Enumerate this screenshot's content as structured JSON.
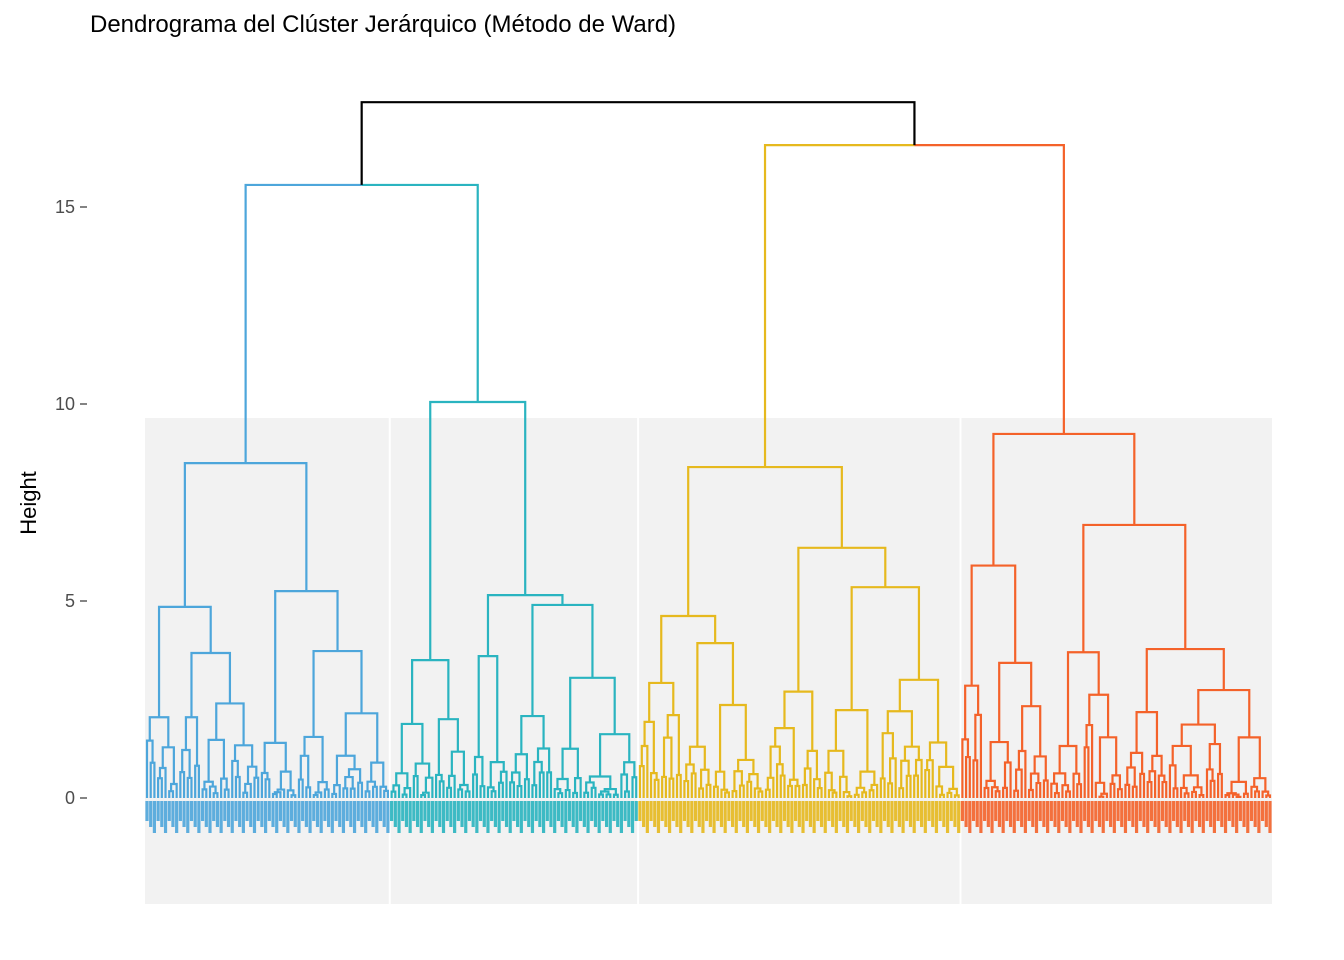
{
  "chart_data": {
    "type": "dendrogram",
    "title": "Dendrograma del Clúster Jerárquico (Método de Ward)",
    "xlabel": "",
    "ylabel": "Height",
    "ylim": [
      -2.7,
      17.7
    ],
    "yticks": [
      0,
      5,
      10,
      15
    ],
    "grid": false,
    "legend": "none",
    "root_height": 17.66,
    "root_color": "#000000",
    "groups": [
      {
        "height": 15.56,
        "clusters": [
          0,
          1
        ]
      },
      {
        "height": 16.57,
        "clusters": [
          2,
          3
        ]
      }
    ],
    "clusters": [
      {
        "color": "#4DA6DB",
        "tree": {
          "h": 8.5,
          "c": [
            {
              "h": 4.85,
              "c": [
                {
                  "h": 2.05,
                  "n": 9
                },
                {
                  "h": 3.68,
                  "c": [
                    {
                      "h": 2.05,
                      "n": 6
                    },
                    {
                      "h": 2.4,
                      "n": 16
                    }
                  ]
                }
              ]
            },
            {
              "h": 5.25,
              "c": [
                {
                  "h": 1.4,
                  "n": 10
                },
                {
                  "h": 3.73,
                  "c": [
                    {
                      "h": 1.55,
                      "n": 9
                    },
                    {
                      "h": 2.15,
                      "n": 16
                    }
                  ]
                }
              ]
            }
          ]
        }
      },
      {
        "color": "#2AB4C0",
        "tree": {
          "h": 10.05,
          "c": [
            {
              "h": 3.5,
              "c": [
                {
                  "h": 1.88,
                  "n": 12
                },
                {
                  "h": 2.0,
                  "n": 10
                }
              ]
            },
            {
              "h": 5.15,
              "c": [
                {
                  "h": 3.6,
                  "n": 10
                },
                {
                  "h": 4.9,
                  "c": [
                    {
                      "h": 2.08,
                      "n": 12
                    },
                    {
                      "h": 3.05,
                      "c": [
                        {
                          "h": 1.25,
                          "n": 8
                        },
                        {
                          "h": 1.62,
                          "n": 15
                        }
                      ]
                    }
                  ]
                }
              ]
            }
          ]
        }
      },
      {
        "color": "#E6B91E",
        "tree": {
          "h": 8.4,
          "c": [
            {
              "h": 4.62,
              "c": [
                {
                  "h": 2.92,
                  "n": 12
                },
                {
                  "h": 3.93,
                  "c": [
                    {
                      "h": 1.3,
                      "n": 8
                    },
                    {
                      "h": 2.36,
                      "n": 14
                    }
                  ]
                }
              ]
            },
            {
              "h": 6.35,
              "c": [
                {
                  "h": 2.7,
                  "n": 16
                },
                {
                  "h": 5.35,
                  "c": [
                    {
                      "h": 2.23,
                      "n": 15
                    },
                    {
                      "h": 3.0,
                      "n": 22
                    }
                  ]
                }
              ]
            }
          ]
        }
      },
      {
        "color": "#F4622A",
        "tree": {
          "h": 9.24,
          "c": [
            {
              "h": 5.9,
              "c": [
                {
                  "h": 2.85,
                  "n": 6
                },
                {
                  "h": 3.43,
                  "c": [
                    {
                      "h": 1.42,
                      "n": 8
                    },
                    {
                      "h": 2.33,
                      "n": 10
                    }
                  ]
                }
              ]
            },
            {
              "h": 6.93,
              "c": [
                {
                  "h": 3.7,
                  "c": [
                    {
                      "h": 1.32,
                      "n": 9
                    },
                    {
                      "h": 2.62,
                      "n": 11
                    }
                  ]
                },
                {
                  "h": 3.78,
                  "c": [
                    {
                      "h": 2.18,
                      "n": 12
                    },
                    {
                      "h": 2.74,
                      "n": 28
                    }
                  ]
                }
              ]
            }
          ]
        }
      }
    ],
    "rect_fill": "#F2F2F2"
  }
}
